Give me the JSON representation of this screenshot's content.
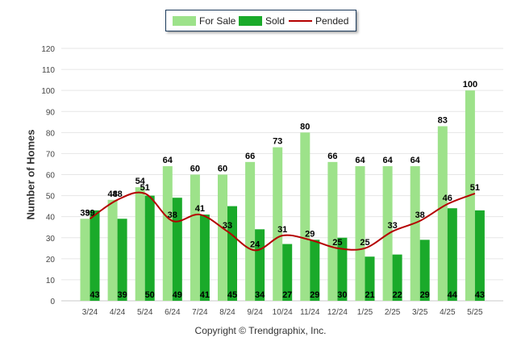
{
  "legend": {
    "for_sale": "For Sale",
    "sold": "Sold",
    "pended": "Pended"
  },
  "footer": "Copyright © Trendgraphix, Inc.",
  "colors": {
    "for_sale": "#9de28a",
    "sold": "#1aaa2a",
    "pended": "#b50000"
  },
  "chart_data": {
    "type": "bar",
    "ylabel": "Number of Homes",
    "xlabel": "",
    "ylim": [
      0,
      120
    ],
    "yticks": [
      0,
      10,
      20,
      30,
      40,
      50,
      60,
      70,
      80,
      90,
      100,
      110,
      120
    ],
    "grid": true,
    "legend_position": "top-center",
    "categories": [
      "3/24",
      "4/24",
      "5/24",
      "6/24",
      "7/24",
      "8/24",
      "9/24",
      "10/24",
      "11/24",
      "12/24",
      "1/25",
      "2/25",
      "3/25",
      "4/25",
      "5/25"
    ],
    "series": [
      {
        "name": "For Sale",
        "type": "bar",
        "values": [
          39,
          48,
          54,
          64,
          60,
          60,
          66,
          73,
          80,
          66,
          64,
          64,
          64,
          83,
          100
        ]
      },
      {
        "name": "Sold",
        "type": "bar",
        "values": [
          43,
          39,
          50,
          49,
          41,
          45,
          34,
          27,
          29,
          30,
          21,
          22,
          29,
          44,
          43
        ]
      },
      {
        "name": "Pended",
        "type": "line",
        "values": [
          39,
          48,
          51,
          38,
          41,
          33,
          24,
          31,
          29,
          25,
          25,
          33,
          38,
          46,
          51
        ]
      }
    ]
  }
}
